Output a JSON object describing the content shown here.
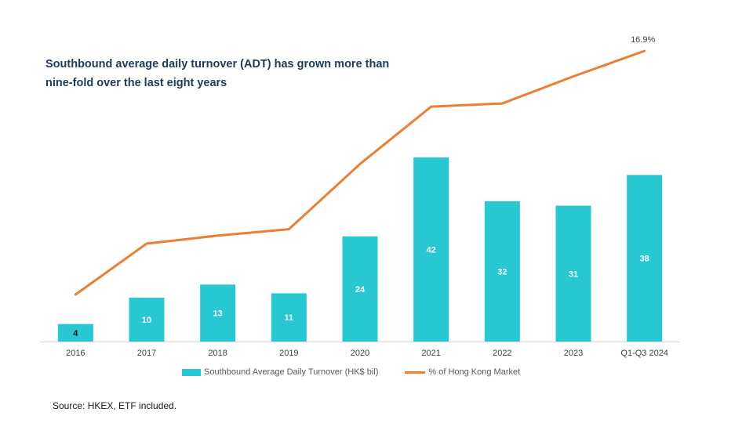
{
  "title": "Southbound average daily turnover (ADT) has grown more than nine-fold over the last eight years",
  "source": "Source: HKEX, ETF included.",
  "colors": {
    "bar": "#28c8d2",
    "line": "#ed7d31",
    "axis": "#d9d9d9"
  },
  "chart_data": {
    "type": "bar",
    "categories": [
      "2016",
      "2017",
      "2018",
      "2019",
      "2020",
      "2021",
      "2022",
      "2023",
      "Q1-Q3 2024"
    ],
    "series": [
      {
        "name": "Southbound Average Daily Turnover (HK$ bil)",
        "type": "bar",
        "values": [
          4,
          10,
          13,
          11,
          24,
          42,
          32,
          31,
          38
        ],
        "labels": [
          "4",
          "10",
          "13",
          "11",
          "24",
          "42",
          "32",
          "31",
          "38"
        ]
      },
      {
        "name": "% of Hong Kong Market",
        "type": "line",
        "values": [
          1.6,
          4.8,
          5.3,
          5.7,
          9.8,
          13.4,
          13.6,
          15.3,
          16.9
        ],
        "labels": [
          "",
          "",
          "",
          "",
          "",
          "",
          "",
          "",
          "16.9%"
        ]
      }
    ],
    "y_bar_range": [
      0,
      42
    ],
    "y_line_range": [
      0,
      16.9
    ]
  },
  "legend": {
    "bar_label": "Southbound Average Daily Turnover (HK$ bil)",
    "line_label": "% of Hong Kong Market"
  }
}
